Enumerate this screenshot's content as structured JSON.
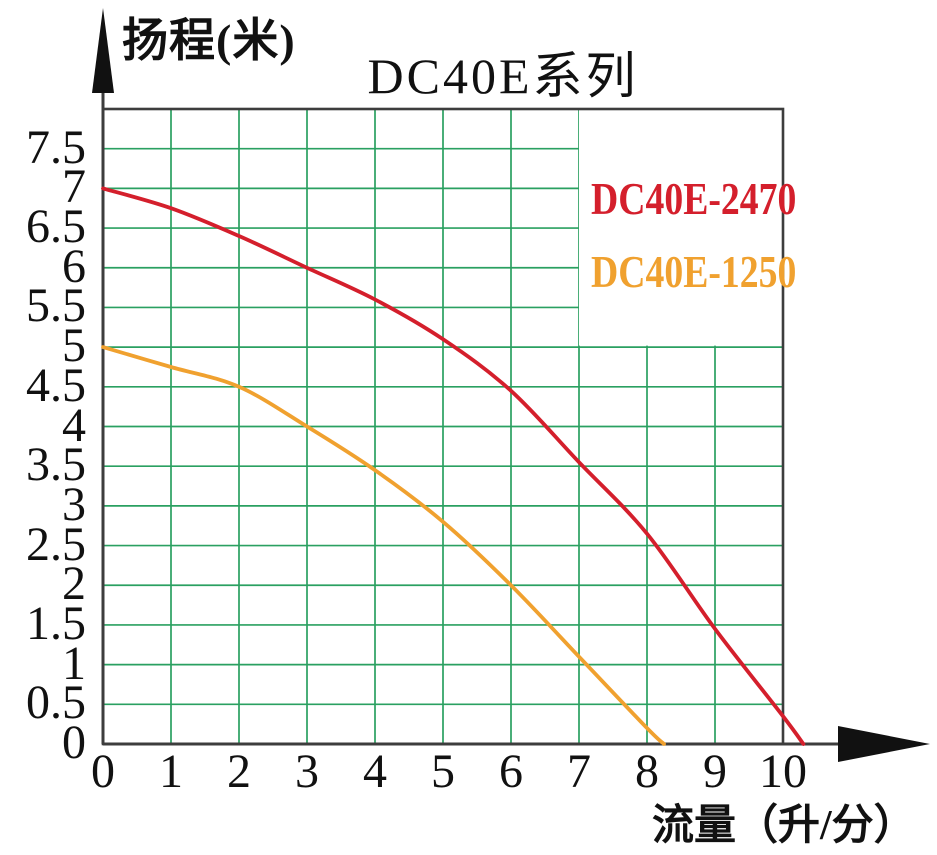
{
  "title": "DC40E系列",
  "y_axis_title": "扬程(米)",
  "x_axis_title": "流量（升/分）",
  "legend": [
    {
      "label": "DC40E-2470",
      "color": "#d41f2c"
    },
    {
      "label": "DC40E-1250",
      "color": "#f0a12f"
    }
  ],
  "colors": {
    "grid_green": "#2aa061",
    "axis_dark": "#3d3d3d",
    "arrow_black": "#111111",
    "series_red": "#d41f2c",
    "series_orange": "#f0a12f",
    "background": "#ffffff"
  },
  "chart_data": {
    "type": "line",
    "title": "DC40E系列",
    "xlabel": "流量（升/分）",
    "ylabel": "扬程(米)",
    "xlim": [
      0,
      10
    ],
    "ylim": [
      0,
      8
    ],
    "grid": true,
    "legend_position": "top-right-inside",
    "x_ticks": [
      0,
      1,
      2,
      3,
      4,
      5,
      6,
      7,
      8,
      9,
      10
    ],
    "x_tick_labels": [
      "0",
      "1",
      "2",
      "3",
      "4",
      "5",
      "6",
      "7",
      "8",
      "9",
      "10"
    ],
    "y_ticks": [
      0,
      0.5,
      1,
      1.5,
      2,
      2.5,
      3,
      3.5,
      4,
      4.5,
      5,
      5.5,
      6,
      6.5,
      7,
      7.5
    ],
    "y_tick_labels": [
      "0",
      "0.5",
      "1",
      "1.5",
      "2",
      "2.5",
      "3",
      "3.5",
      "4",
      "4.5",
      "5",
      "5.5",
      "6",
      "6.5",
      "7",
      "7.5"
    ],
    "series": [
      {
        "name": "DC40E-2470",
        "color": "#d41f2c",
        "points": [
          [
            0,
            7.0
          ],
          [
            1,
            6.75
          ],
          [
            2,
            6.4
          ],
          [
            3,
            6.0
          ],
          [
            4,
            5.6
          ],
          [
            5,
            5.1
          ],
          [
            6,
            4.45
          ],
          [
            7,
            3.55
          ],
          [
            8,
            2.65
          ],
          [
            9,
            1.45
          ],
          [
            10,
            0.35
          ],
          [
            10.3,
            0
          ]
        ]
      },
      {
        "name": "DC40E-1250",
        "color": "#f0a12f",
        "points": [
          [
            0,
            5.0
          ],
          [
            1,
            4.75
          ],
          [
            2,
            4.5
          ],
          [
            3,
            4.0
          ],
          [
            4,
            3.45
          ],
          [
            5,
            2.8
          ],
          [
            6,
            2.0
          ],
          [
            7,
            1.1
          ],
          [
            8,
            0.2
          ],
          [
            8.25,
            0
          ]
        ]
      }
    ]
  }
}
